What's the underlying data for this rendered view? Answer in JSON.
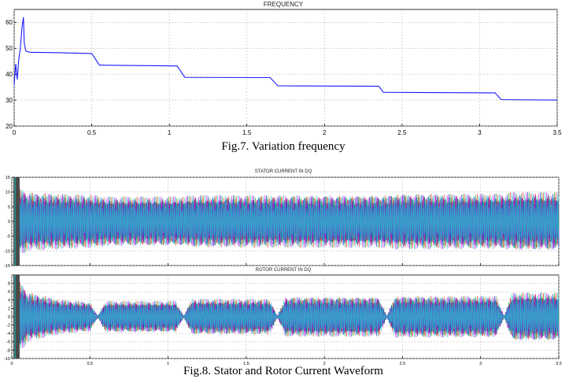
{
  "figure7": {
    "title": "FREQUENCY",
    "caption": "Fig.7. Variation frequency"
  },
  "figure8": {
    "caption": "Fig.8. Stator and Rotor Current Waveform",
    "stator_title": "STATOR CURRENT IN DQ",
    "rotor_title": "ROTOR CURRENT IN DQ"
  },
  "chart_data": [
    {
      "type": "line",
      "title": "FREQUENCY",
      "xlim": [
        0,
        3.5
      ],
      "ylim": [
        20,
        65
      ],
      "xticks": [
        "0",
        "0.5",
        "1",
        "1.5",
        "2",
        "2.5",
        "3",
        "3.5"
      ],
      "yticks": [
        "20",
        "30",
        "40",
        "50",
        "60"
      ],
      "grid": true,
      "series": [
        {
          "color": "#1a1aff",
          "x": [
            0,
            0.01,
            0.02,
            0.03,
            0.04,
            0.05,
            0.06,
            0.065,
            0.075,
            0.1,
            0.3,
            0.5,
            0.55,
            1.05,
            1.1,
            1.65,
            1.7,
            2.35,
            2.38,
            3.1,
            3.14,
            3.5
          ],
          "y": [
            36,
            44,
            38,
            46,
            50,
            58,
            62,
            52,
            49,
            48.5,
            48.3,
            48,
            43.5,
            43.2,
            38.8,
            38.7,
            35.5,
            35.4,
            33,
            32.8,
            30.2,
            30
          ]
        }
      ]
    },
    {
      "type": "line",
      "title": "STATOR CURRENT IN DQ",
      "xlim": [
        0,
        3.5
      ],
      "ylim": [
        -15,
        15
      ],
      "yticks": [
        "-15",
        "-10",
        "-5",
        "0",
        "5",
        "10",
        "15"
      ],
      "grid": true,
      "series_colors": [
        "#e8141e",
        "#14a014",
        "#1414e0",
        "#d414d4",
        "#14c8c8"
      ],
      "envelope": {
        "x": [
          0.05,
          0.1,
          0.55,
          0.6,
          1.1,
          1.15,
          1.7,
          1.75,
          2.4,
          2.45,
          3.15,
          3.2,
          3.5
        ],
        "amp": [
          12,
          10,
          9,
          8.5,
          8.5,
          9,
          9,
          9,
          9,
          9.5,
          9.5,
          10,
          10
        ]
      }
    },
    {
      "type": "line",
      "title": "ROTOR CURRENT IN DQ",
      "xlim": [
        0,
        3.5
      ],
      "ylim": [
        -10,
        10
      ],
      "xticks": [
        "0",
        "0.5",
        "1",
        "1.5",
        "2",
        "2.5",
        "3",
        "3.5"
      ],
      "yticks": [
        "-10",
        "-8",
        "-6",
        "-4",
        "-2",
        "0",
        "2",
        "4",
        "6",
        "8"
      ],
      "grid": true,
      "series_colors": [
        "#e8141e",
        "#14a014",
        "#1414e0",
        "#d414d4",
        "#14c8c8"
      ],
      "envelope": {
        "x": [
          0.05,
          0.1,
          0.3,
          0.5,
          0.55,
          0.6,
          1.05,
          1.1,
          1.15,
          1.65,
          1.7,
          1.75,
          2.35,
          2.4,
          2.45,
          3.1,
          3.15,
          3.2,
          3.5
        ],
        "amp": [
          9,
          6,
          4.2,
          3.6,
          0.2,
          3.8,
          3.8,
          0.2,
          4.3,
          4.3,
          0.2,
          4.8,
          4.8,
          0.2,
          5,
          5,
          0.2,
          5.8,
          5.8
        ]
      }
    }
  ]
}
